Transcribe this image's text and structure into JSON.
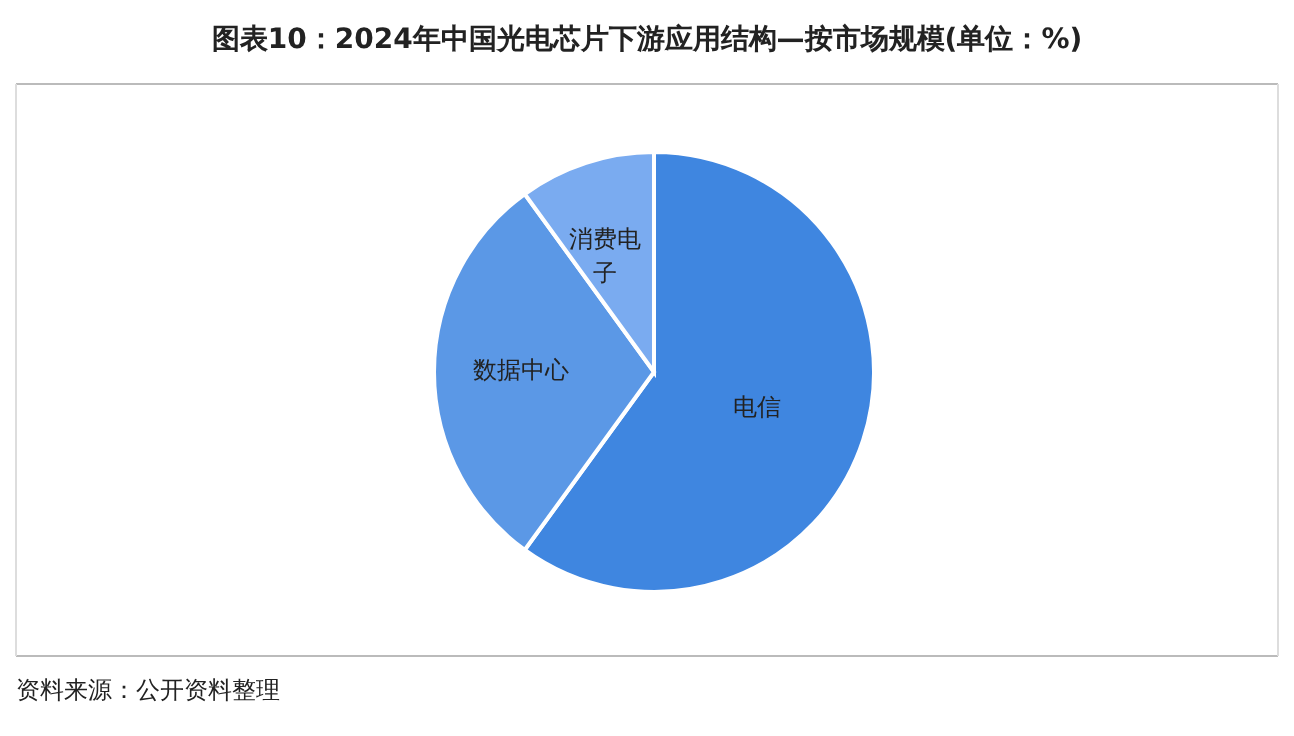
{
  "chart_data": {
    "type": "pie",
    "title": "图表10：2024年中国光电芯片下游应用结构—按市场规模(单位：%)",
    "categories": [
      "电信",
      "数据中心",
      "消费电子"
    ],
    "values": [
      60,
      30,
      10
    ],
    "colors": [
      "#3f86e0",
      "#5b98e6",
      "#7aabf0"
    ],
    "legend": false,
    "annotations": [
      "资料来源：公开资料整理"
    ]
  }
}
